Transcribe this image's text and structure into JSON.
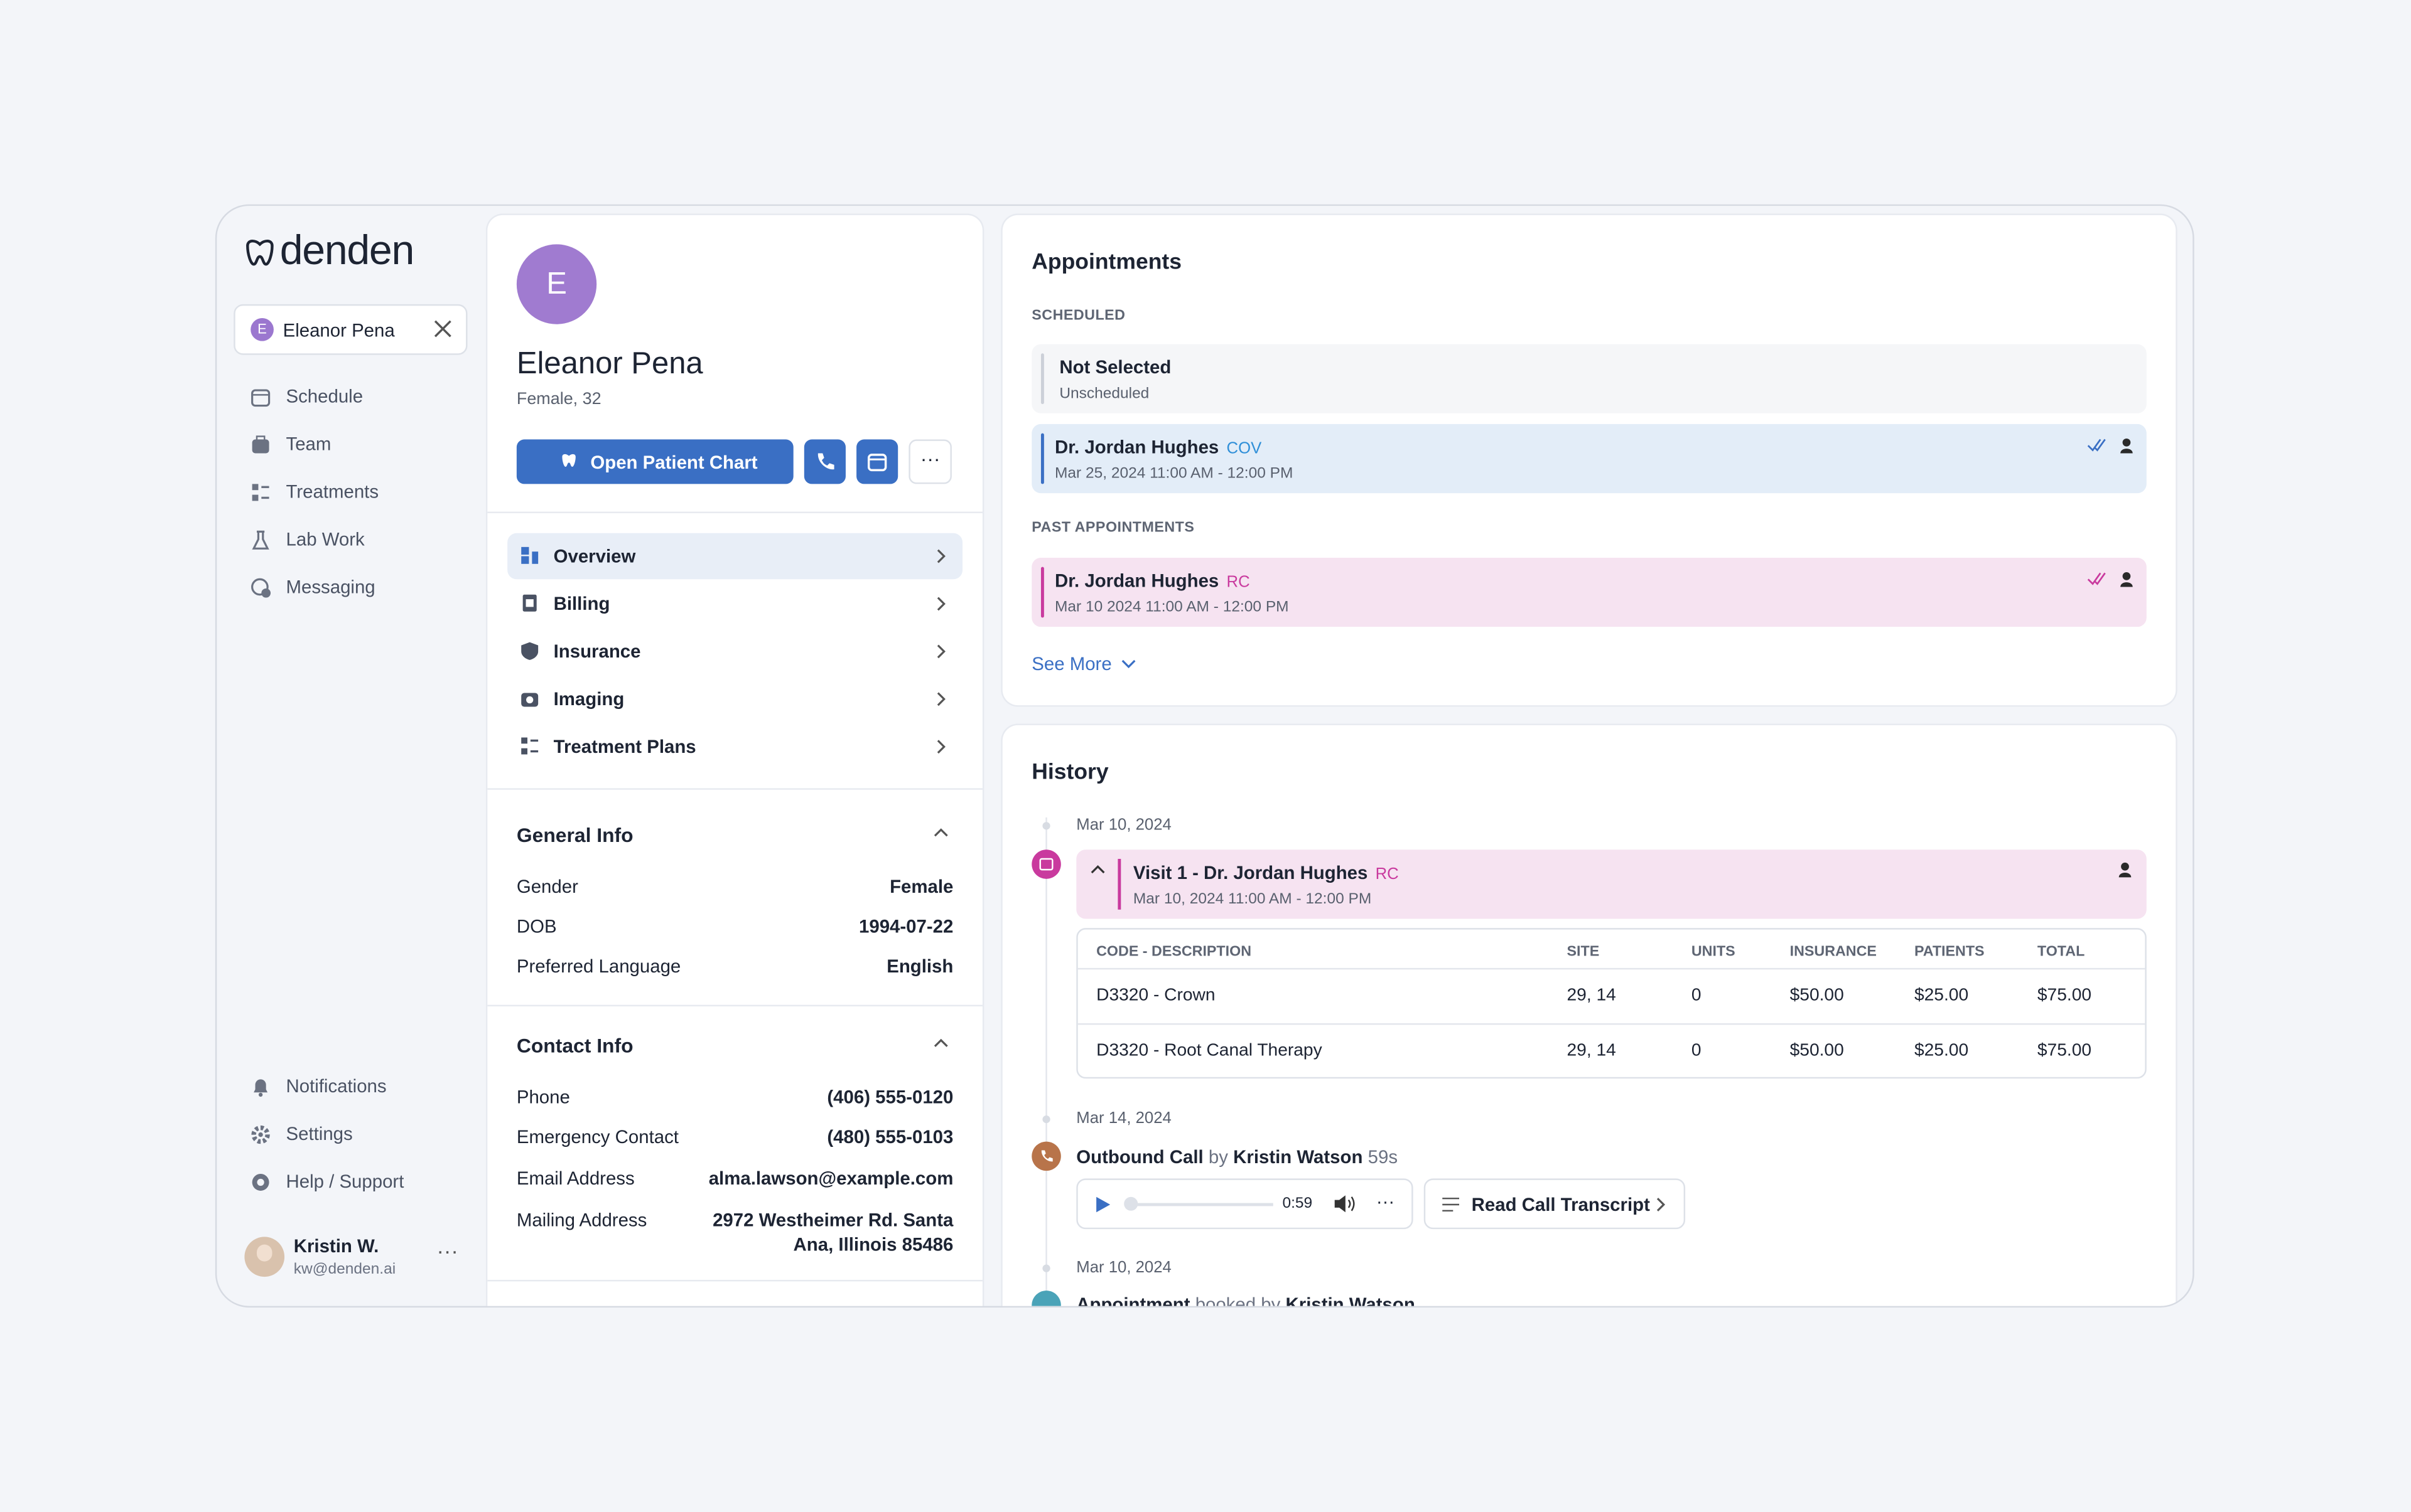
{
  "brand": "denden",
  "sidebar": {
    "patient_chip": {
      "initial": "E",
      "name": "Eleanor Pena"
    },
    "nav": [
      "Schedule",
      "Team",
      "Treatments",
      "Lab Work",
      "Messaging"
    ],
    "bottom_nav": [
      "Notifications",
      "Settings",
      "Help / Support"
    ],
    "user": {
      "name": "Kristin W.",
      "email": "kw@denden.ai"
    }
  },
  "patient": {
    "initial": "E",
    "name": "Eleanor Pena",
    "subtitle": "Female, 32",
    "open_chart": "Open Patient Chart",
    "menu": [
      "Overview",
      "Billing",
      "Insurance",
      "Imaging",
      "Treatment Plans"
    ],
    "general_info": {
      "title": "General Info",
      "rows": [
        [
          "Gender",
          "Female"
        ],
        [
          "DOB",
          "1994-07-22"
        ],
        [
          "Preferred Language",
          "English"
        ]
      ]
    },
    "contact_info": {
      "title": "Contact Info",
      "rows": [
        [
          "Phone",
          "(406) 555-0120"
        ],
        [
          "Emergency Contact",
          "(480) 555-0103"
        ],
        [
          "Email Address",
          "alma.lawson@example.com"
        ],
        [
          "Mailing Address",
          "2972 Westheimer Rd. Santa Ana, Illinois 85486"
        ]
      ]
    }
  },
  "appointments": {
    "title": "Appointments",
    "scheduled_label": "SCHEDULED",
    "unscheduled": {
      "title": "Not Selected",
      "subtitle": "Unscheduled"
    },
    "scheduled": {
      "doctor": "Dr. Jordan Hughes",
      "tag": "COV",
      "time": "Mar 25, 2024 11:00 AM - 12:00 PM"
    },
    "past_label": "PAST APPOINTMENTS",
    "past": {
      "doctor": "Dr. Jordan Hughes",
      "tag": "RC",
      "time": "Mar 10 2024 11:00 AM - 12:00 PM"
    },
    "see_more": "See More"
  },
  "history": {
    "title": "History",
    "visit": {
      "date": "Mar 10, 2024",
      "title": "Visit 1 - Dr. Jordan Hughes",
      "tag": "RC",
      "time": "Mar 10, 2024 11:00 AM - 12:00 PM",
      "table": {
        "headers": [
          "CODE - DESCRIPTION",
          "SITE",
          "UNITS",
          "INSURANCE",
          "PATIENTS",
          "TOTAL"
        ],
        "rows": [
          [
            "D3320 - Crown",
            "29, 14",
            "0",
            "$50.00",
            "$25.00",
            "$75.00"
          ],
          [
            "D3320 - Root Canal Therapy",
            "29, 14",
            "0",
            "$50.00",
            "$25.00",
            "$75.00"
          ]
        ]
      }
    },
    "call": {
      "date": "Mar 14, 2024",
      "title": "Outbound Call",
      "by": "by",
      "person": "Kristin Watson",
      "duration": "59s",
      "audio_time": "0:59",
      "transcript": "Read Call Transcript"
    },
    "booking": {
      "date": "Mar 10, 2024",
      "title": "Appointment",
      "by": "booked by",
      "person": "Kristin Watson"
    }
  }
}
